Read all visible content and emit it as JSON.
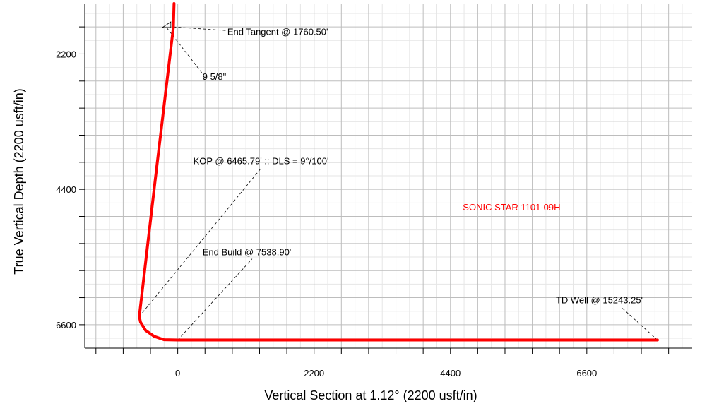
{
  "chart_data": {
    "type": "line",
    "xlabel": "Vertical Section at 1.12° (2200 usft/in)",
    "ylabel": "True Vertical Depth (2200 usft/in)",
    "xlim": [
      -1500,
      8300
    ],
    "ylim": [
      1380,
      6980
    ],
    "y_inverted": true,
    "x_ticks": [
      0,
      2200,
      4400,
      6600
    ],
    "y_ticks": [
      2200,
      4400,
      6600
    ],
    "grid": true,
    "grid_major_spacing": 440,
    "colors": {
      "well": "#ff0000",
      "grid": "#bdbdbd",
      "annotation": "#000000"
    },
    "series": [
      {
        "name": "SONIC STAR 1101-09H",
        "color": "#ff0000",
        "points": [
          [
            -60,
            1380
          ],
          [
            -70,
            1760.5
          ],
          [
            -370,
            4300
          ],
          [
            -620,
            6465.79
          ],
          [
            -600,
            6560
          ],
          [
            -520,
            6690
          ],
          [
            -380,
            6790
          ],
          [
            -220,
            6843
          ],
          [
            0,
            6848
          ],
          [
            7740,
            6848
          ]
        ]
      }
    ],
    "well_label": {
      "text": "SONIC STAR 1101-09H",
      "x": 4600,
      "y": 4740
    },
    "annotations": [
      {
        "text": "End Tangent @ 1760.50'",
        "point": [
          -70,
          1760.5
        ],
        "text_x": 800,
        "text_y": 1890,
        "leader_to": [
          800,
          1820
        ]
      },
      {
        "text": "9 5/8\"",
        "point": [
          -180,
          1770
        ],
        "text_x": 400,
        "text_y": 2620,
        "leader_to": [
          400,
          2520
        ]
      },
      {
        "text": "KOP @ 6465.79' :: DLS = 9°/100'",
        "point": [
          -620,
          6465.79
        ],
        "text_x": 250,
        "text_y": 3990,
        "leader_to": [
          1350,
          4050
        ]
      },
      {
        "text": "End Build @ 7538.90'",
        "point": [
          0,
          6848
        ],
        "text_x": 400,
        "text_y": 5470,
        "leader_to": [
          1200,
          5530
        ]
      },
      {
        "text": "TD Well @ 15243.25'",
        "point": [
          7740,
          6848
        ],
        "text_x": 6100,
        "text_y": 6250,
        "leader_to": [
          7150,
          6310
        ]
      }
    ]
  }
}
